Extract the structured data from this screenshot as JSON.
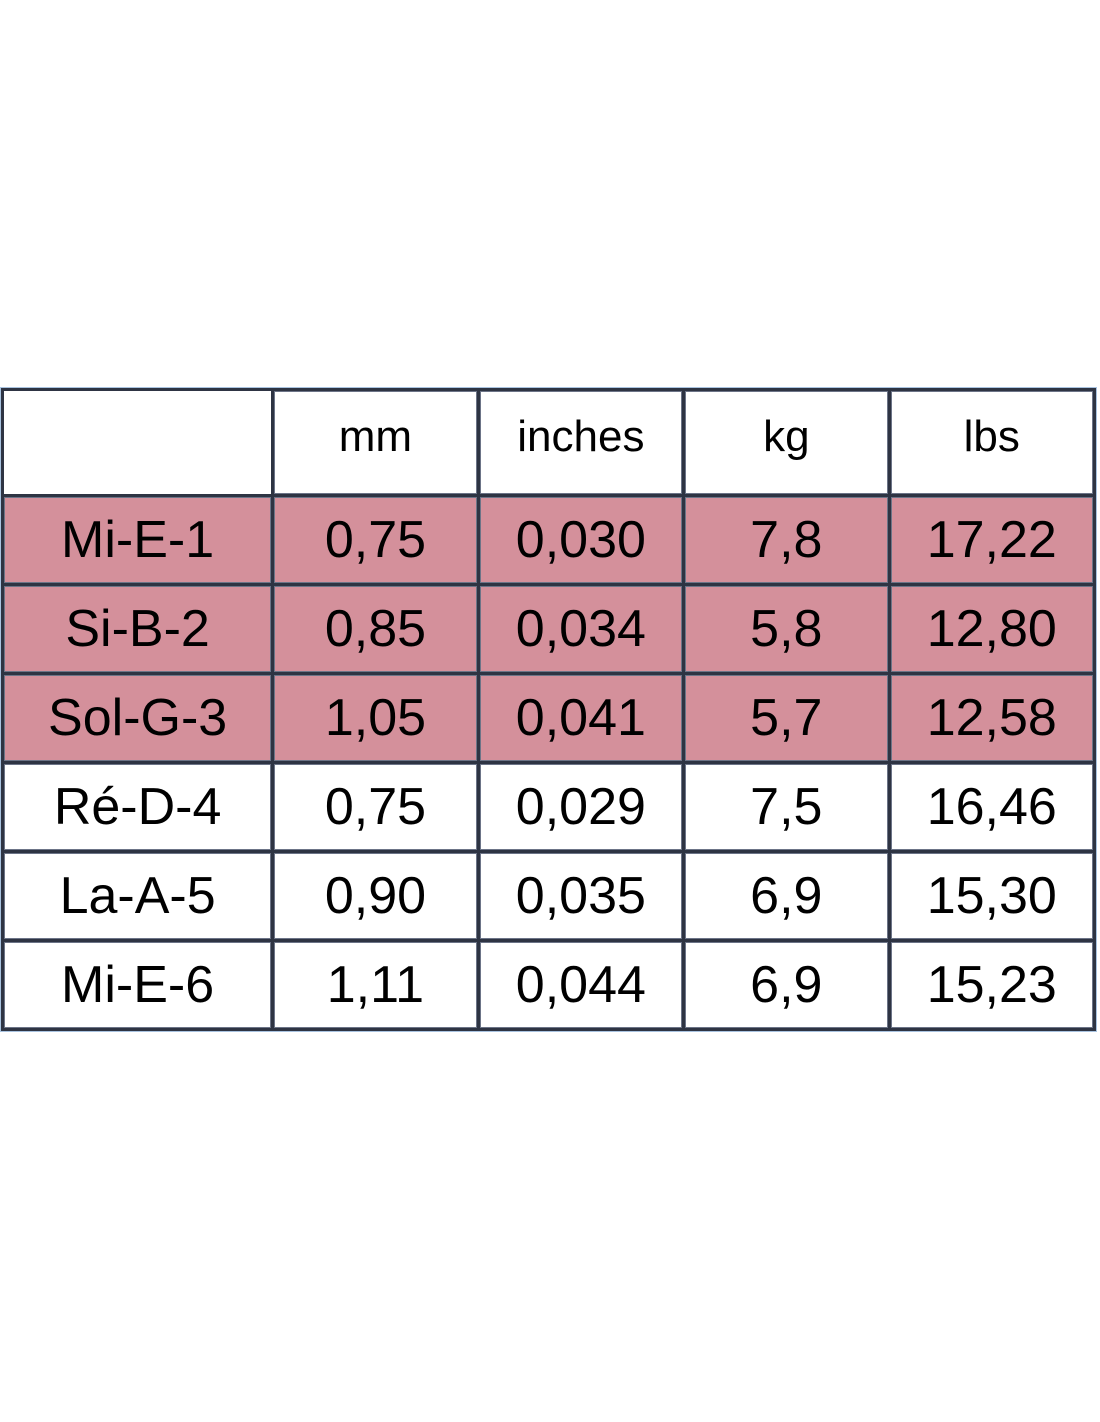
{
  "table": {
    "headers": [
      "",
      "mm",
      "inches",
      "kg",
      "lbs"
    ],
    "rows": [
      {
        "cells": [
          "Mi-E-1",
          "0,75",
          "0,030",
          "7,8",
          "17,22"
        ],
        "highlighted": true
      },
      {
        "cells": [
          "Si-B-2",
          "0,85",
          "0,034",
          "5,8",
          "12,80"
        ],
        "highlighted": true
      },
      {
        "cells": [
          "Sol-G-3",
          "1,05",
          "0,041",
          "5,7",
          "12,58"
        ],
        "highlighted": true
      },
      {
        "cells": [
          "Ré-D-4",
          "0,75",
          "0,029",
          "7,5",
          "16,46"
        ],
        "highlighted": false
      },
      {
        "cells": [
          "La-A-5",
          "0,90",
          "0,035",
          "6,9",
          "15,30"
        ],
        "highlighted": false
      },
      {
        "cells": [
          "Mi-E-6",
          "1,11",
          "0,044",
          "6,9",
          "15,23"
        ],
        "highlighted": false
      }
    ]
  },
  "colors": {
    "highlight": "#d4909b",
    "border": "#2e3443"
  }
}
